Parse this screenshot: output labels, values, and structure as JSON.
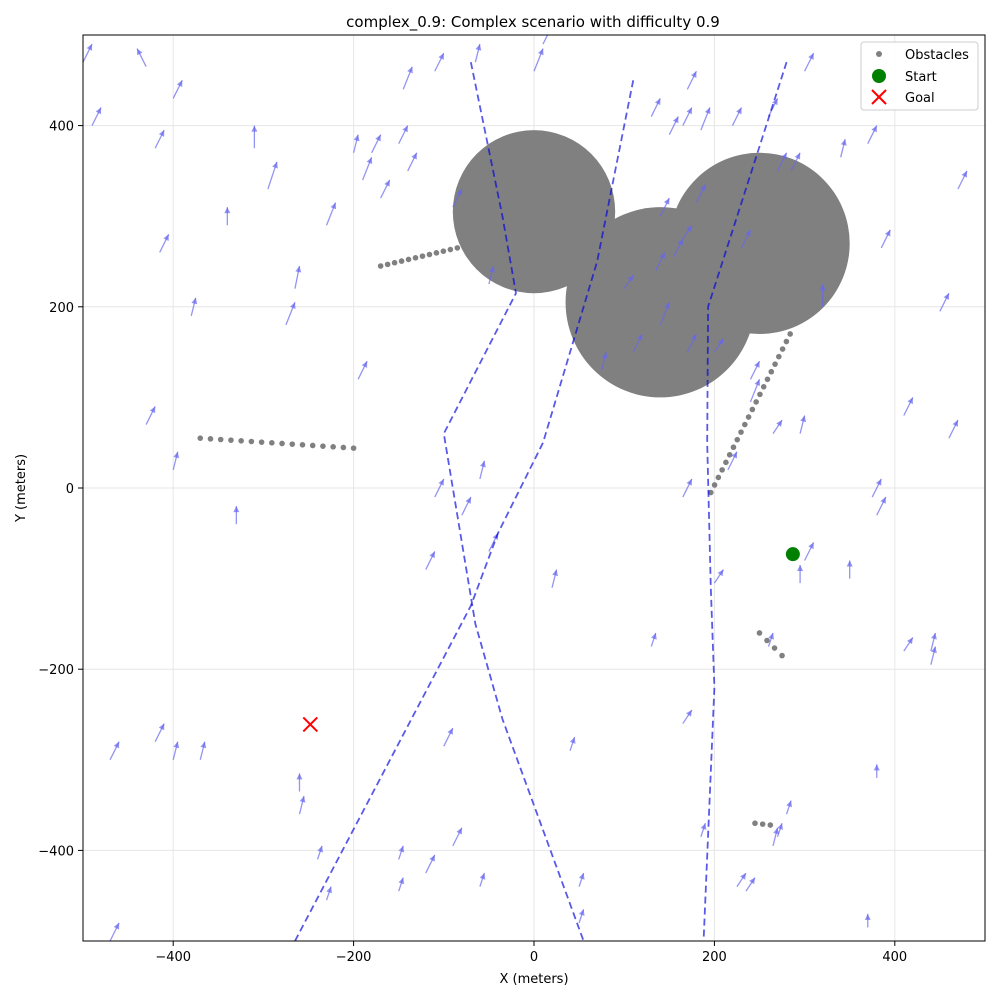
{
  "chart_data": {
    "type": "scatter",
    "title": "complex_0.9: Complex scenario with difficulty 0.9",
    "xlabel": "X (meters)",
    "ylabel": "Y (meters)",
    "xlim": [
      -500,
      500
    ],
    "ylim": [
      -500,
      500
    ],
    "xticks": [
      -400,
      -200,
      0,
      200,
      400
    ],
    "yticks": [
      -400,
      -200,
      0,
      200,
      400
    ],
    "xtick_labels": [
      "−400",
      "−200",
      "0",
      "200",
      "400"
    ],
    "ytick_labels": [
      "−400",
      "−200",
      "0",
      "200",
      "400"
    ],
    "grid": true,
    "legend_position": "top-right",
    "legend": [
      {
        "label": "Obstacles",
        "marker": "dot",
        "color": "#808080"
      },
      {
        "label": "Start",
        "marker": "circle",
        "color": "#008000"
      },
      {
        "label": "Goal",
        "marker": "x",
        "color": "#ff0000"
      }
    ],
    "obstacle_disks": [
      {
        "cx": 0,
        "cy": 305,
        "r": 90
      },
      {
        "cx": 140,
        "cy": 205,
        "r": 105
      },
      {
        "cx": 250,
        "cy": 270,
        "r": 100
      }
    ],
    "obstacle_lines": [
      {
        "x1": -170,
        "y1": 245,
        "x2": -85,
        "y2": 265,
        "n": 12
      },
      {
        "x1": -370,
        "y1": 55,
        "x2": -200,
        "y2": 44,
        "n": 16
      },
      {
        "x1": 196,
        "y1": -5,
        "x2": 284,
        "y2": 170,
        "n": 22
      },
      {
        "x1": 250,
        "y1": -160,
        "x2": 275,
        "y2": -185,
        "n": 4
      },
      {
        "x1": 245,
        "y1": -370,
        "x2": 262,
        "y2": -372,
        "n": 3
      }
    ],
    "start": {
      "x": 287,
      "y": -73,
      "color": "#008000"
    },
    "goal": {
      "x": -248,
      "y": -261,
      "color": "#ff0000"
    },
    "paths": [
      {
        "color": "#0000dd",
        "points": [
          [
            -70,
            470
          ],
          [
            -35,
            300
          ],
          [
            -20,
            215
          ],
          [
            -100,
            60
          ],
          [
            -65,
            -150
          ],
          [
            -35,
            -255
          ],
          [
            55,
            -500
          ]
        ]
      },
      {
        "color": "#0000dd",
        "points": [
          [
            110,
            450
          ],
          [
            70,
            250
          ],
          [
            10,
            50
          ],
          [
            -40,
            -50
          ],
          [
            -70,
            -130
          ],
          [
            -265,
            -500
          ]
        ]
      },
      {
        "color": "#0000dd",
        "points": [
          [
            280,
            470
          ],
          [
            193,
            200
          ],
          [
            192,
            50
          ],
          [
            196,
            -110
          ],
          [
            200,
            -220
          ],
          [
            188,
            -500
          ]
        ]
      }
    ],
    "vector_color": "#6666ee",
    "wind_vectors": [
      [
        -500,
        470,
        10,
        20
      ],
      [
        -490,
        400,
        10,
        20
      ],
      [
        -430,
        465,
        -10,
        20
      ],
      [
        -420,
        375,
        10,
        20
      ],
      [
        -400,
        430,
        10,
        20
      ],
      [
        -415,
        260,
        10,
        20
      ],
      [
        -380,
        190,
        5,
        20
      ],
      [
        -340,
        290,
        0,
        20
      ],
      [
        -310,
        375,
        0,
        25
      ],
      [
        -295,
        330,
        10,
        30
      ],
      [
        -275,
        180,
        10,
        25
      ],
      [
        -265,
        220,
        5,
        25
      ],
      [
        -230,
        290,
        10,
        25
      ],
      [
        -200,
        370,
        5,
        20
      ],
      [
        -190,
        340,
        10,
        25
      ],
      [
        -180,
        370,
        10,
        20
      ],
      [
        -170,
        320,
        10,
        20
      ],
      [
        -150,
        380,
        10,
        20
      ],
      [
        -145,
        440,
        10,
        25
      ],
      [
        -140,
        350,
        10,
        20
      ],
      [
        -110,
        460,
        10,
        20
      ],
      [
        -90,
        310,
        10,
        20
      ],
      [
        -65,
        470,
        5,
        20
      ],
      [
        -50,
        225,
        5,
        20
      ],
      [
        -195,
        120,
        10,
        20
      ],
      [
        -430,
        70,
        10,
        20
      ],
      [
        -400,
        20,
        5,
        20
      ],
      [
        -330,
        -40,
        0,
        20
      ],
      [
        -120,
        -90,
        10,
        20
      ],
      [
        -110,
        -10,
        10,
        20
      ],
      [
        -60,
        10,
        5,
        20
      ],
      [
        -50,
        -70,
        10,
        20
      ],
      [
        -80,
        -30,
        10,
        20
      ],
      [
        -470,
        -300,
        10,
        20
      ],
      [
        -420,
        -280,
        10,
        20
      ],
      [
        -400,
        -300,
        5,
        20
      ],
      [
        -370,
        -300,
        5,
        20
      ],
      [
        -260,
        -335,
        0,
        20
      ],
      [
        -260,
        -360,
        5,
        20
      ],
      [
        -240,
        -410,
        5,
        15
      ],
      [
        -230,
        -455,
        5,
        15
      ],
      [
        -150,
        -410,
        5,
        15
      ],
      [
        -150,
        -445,
        5,
        15
      ],
      [
        -120,
        -425,
        10,
        20
      ],
      [
        -100,
        -285,
        10,
        20
      ],
      [
        -90,
        -395,
        10,
        20
      ],
      [
        -60,
        -440,
        5,
        15
      ],
      [
        -470,
        -500,
        10,
        20
      ],
      [
        0,
        460,
        10,
        25
      ],
      [
        10,
        490,
        10,
        20
      ],
      [
        75,
        130,
        5,
        20
      ],
      [
        100,
        220,
        10,
        15
      ],
      [
        110,
        150,
        10,
        20
      ],
      [
        130,
        410,
        10,
        20
      ],
      [
        135,
        240,
        10,
        20
      ],
      [
        140,
        180,
        10,
        25
      ],
      [
        140,
        300,
        10,
        20
      ],
      [
        150,
        390,
        10,
        20
      ],
      [
        155,
        255,
        10,
        20
      ],
      [
        165,
        400,
        10,
        20
      ],
      [
        165,
        275,
        10,
        15
      ],
      [
        170,
        440,
        10,
        20
      ],
      [
        170,
        150,
        10,
        20
      ],
      [
        180,
        315,
        10,
        20
      ],
      [
        185,
        395,
        10,
        25
      ],
      [
        200,
        150,
        10,
        15
      ],
      [
        220,
        400,
        10,
        20
      ],
      [
        230,
        265,
        10,
        20
      ],
      [
        240,
        120,
        10,
        20
      ],
      [
        240,
        95,
        10,
        25
      ],
      [
        260,
        410,
        10,
        20
      ],
      [
        265,
        60,
        10,
        15
      ],
      [
        270,
        350,
        10,
        20
      ],
      [
        285,
        350,
        10,
        20
      ],
      [
        295,
        60,
        5,
        20
      ],
      [
        300,
        460,
        10,
        20
      ],
      [
        320,
        200,
        0,
        25
      ],
      [
        340,
        365,
        5,
        20
      ],
      [
        370,
        380,
        10,
        20
      ],
      [
        385,
        265,
        10,
        20
      ],
      [
        410,
        80,
        10,
        20
      ],
      [
        450,
        195,
        10,
        20
      ],
      [
        460,
        55,
        10,
        20
      ],
      [
        470,
        330,
        10,
        20
      ],
      [
        20,
        -110,
        5,
        20
      ],
      [
        40,
        -290,
        5,
        15
      ],
      [
        50,
        -440,
        5,
        15
      ],
      [
        50,
        -480,
        5,
        15
      ],
      [
        130,
        -175,
        5,
        15
      ],
      [
        165,
        -10,
        10,
        20
      ],
      [
        200,
        -105,
        10,
        15
      ],
      [
        215,
        20,
        10,
        20
      ],
      [
        225,
        -440,
        10,
        15
      ],
      [
        235,
        -445,
        10,
        15
      ],
      [
        165,
        -260,
        10,
        15
      ],
      [
        185,
        -385,
        5,
        15
      ],
      [
        260,
        -175,
        5,
        15
      ],
      [
        265,
        -395,
        5,
        20
      ],
      [
        270,
        -385,
        5,
        15
      ],
      [
        280,
        -360,
        5,
        15
      ],
      [
        295,
        -105,
        0,
        20
      ],
      [
        300,
        -80,
        10,
        20
      ],
      [
        350,
        -100,
        0,
        20
      ],
      [
        375,
        -10,
        10,
        20
      ],
      [
        380,
        -30,
        10,
        20
      ],
      [
        380,
        -320,
        0,
        15
      ],
      [
        410,
        -180,
        10,
        15
      ],
      [
        440,
        -180,
        5,
        20
      ],
      [
        440,
        -195,
        5,
        20
      ],
      [
        370,
        -485,
        0,
        15
      ]
    ]
  }
}
